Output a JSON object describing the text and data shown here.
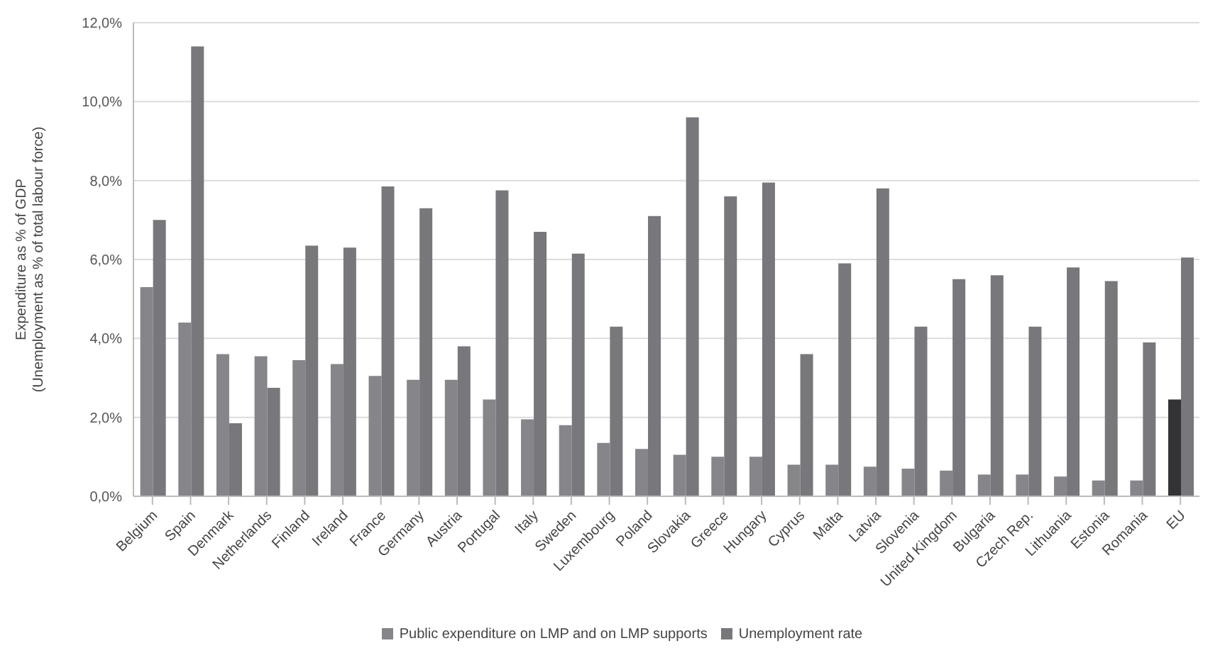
{
  "chart_data": {
    "type": "bar",
    "ylabel": "Expenditure as % of GDP\n(Unemployment as % of total labour force)",
    "categories": [
      "Belgium",
      "Spain",
      "Denmark",
      "Netherlands",
      "Finland",
      "Ireland",
      "France",
      "Germany",
      "Austria",
      "Portugal",
      "Italy",
      "Sweden",
      "Luxembourg",
      "Poland",
      "Slovakia",
      "Greece",
      "Hungary",
      "Cyprus",
      "Malta",
      "Latvia",
      "Slovenia",
      "United Kingdom",
      "Bulgaria",
      "Czech Rep.",
      "Lithuania",
      "Estonia",
      "Romania",
      "EU"
    ],
    "series": [
      {
        "name": "Public expenditure on LMP and on LMP supports",
        "color": "#85858a",
        "colors": [
          "#85858a",
          "#85858a",
          "#85858a",
          "#85858a",
          "#85858a",
          "#85858a",
          "#85858a",
          "#85858a",
          "#85858a",
          "#85858a",
          "#85858a",
          "#85858a",
          "#85858a",
          "#85858a",
          "#85858a",
          "#85858a",
          "#85858a",
          "#85858a",
          "#85858a",
          "#85858a",
          "#85858a",
          "#85858a",
          "#85858a",
          "#85858a",
          "#85858a",
          "#85858a",
          "#85858a",
          "#333335"
        ],
        "values": [
          5.3,
          4.4,
          3.6,
          3.55,
          3.45,
          3.35,
          3.05,
          2.95,
          2.95,
          2.45,
          1.95,
          1.8,
          1.35,
          1.2,
          1.05,
          1.0,
          1.0,
          0.8,
          0.8,
          0.75,
          0.7,
          0.65,
          0.55,
          0.55,
          0.5,
          0.4,
          0.4,
          2.45
        ]
      },
      {
        "name": "Unemployment rate",
        "color": "#77777c",
        "values": [
          7.0,
          11.4,
          1.85,
          2.75,
          6.35,
          6.3,
          7.85,
          7.3,
          3.8,
          7.75,
          6.7,
          6.15,
          4.3,
          7.1,
          9.6,
          7.6,
          7.95,
          3.6,
          5.9,
          7.8,
          4.3,
          5.5,
          5.6,
          4.3,
          5.8,
          5.45,
          3.9,
          6.05
        ]
      }
    ],
    "ylim": [
      0,
      12
    ],
    "yticks": [
      {
        "value": 0,
        "label": "0,0%"
      },
      {
        "value": 2,
        "label": "2,0%"
      },
      {
        "value": 4,
        "label": "4,0%"
      },
      {
        "value": 6,
        "label": "6,0%"
      },
      {
        "value": 8,
        "label": "8,0%"
      },
      {
        "value": 10,
        "label": "10,0%"
      },
      {
        "value": 12,
        "label": "12,0%"
      }
    ],
    "grid": "y",
    "legend": "bottom"
  }
}
